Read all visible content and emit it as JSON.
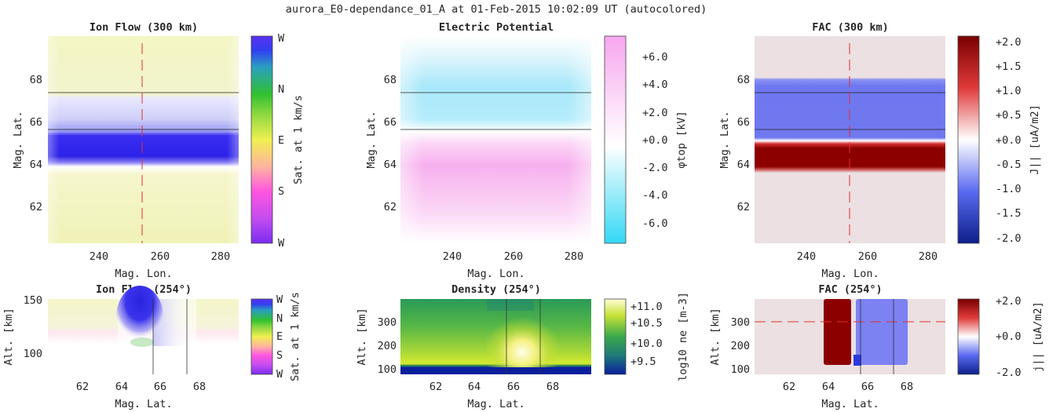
{
  "suptitle": "aurora_E0-dependance_01_A at 01-Feb-2015 10:02:09 UT (autocolored)",
  "colors": {
    "cyclic": [
      "#7b2cf0",
      "#ff55e0",
      "#ffb0a0",
      "#f0f050",
      "#30c030",
      "#3040f0",
      "#7b2cf0"
    ],
    "potential": [
      "#33d8f5",
      "#ffffff",
      "#f7a6ee"
    ],
    "fac": [
      "#0c1f8a",
      "#5a6af0",
      "#ffffff",
      "#e03a3a",
      "#7a0000"
    ],
    "density": [
      "#0a1f9c",
      "#1f8a5c",
      "#4cb848",
      "#d8ea30",
      "#ffffe0"
    ],
    "dashed_line": "#e03030",
    "axis_bg": "#ffffff"
  },
  "panels": {
    "ion_flow_top": {
      "title": "Ion Flow (300 km)",
      "xlabel": "Mag. Lon.",
      "ylabel": "Mag. Lat.",
      "xticks": [
        "240",
        "260",
        "280"
      ],
      "yticks": [
        "62",
        "64",
        "66",
        "68"
      ],
      "cbar_label": "Sat. at 1 km/s",
      "cbar_ticks": [
        "W",
        "N",
        "E",
        "S",
        "W"
      ]
    },
    "potential": {
      "title": "Electric Potential",
      "xlabel": "Mag. Lon.",
      "ylabel": "Mag. Lat.",
      "xticks": [
        "240",
        "260",
        "280"
      ],
      "yticks": [
        "62",
        "64",
        "66",
        "68"
      ],
      "cbar_label": "φtop [kV]",
      "cbar_ticks": [
        "+6.0",
        "+4.0",
        "+2.0",
        "+0.0",
        "-2.0",
        "-4.0",
        "-6.0"
      ]
    },
    "fac_top": {
      "title": "FAC (300 km)",
      "xlabel": "Mag. Lon.",
      "ylabel": "Mag. Lat.",
      "xticks": [
        "240",
        "260",
        "280"
      ],
      "yticks": [
        "62",
        "64",
        "66",
        "68"
      ],
      "cbar_label": "J|| [uA/m2]",
      "cbar_ticks": [
        "+2.0",
        "+1.5",
        "+1.0",
        "+0.5",
        "+0.0",
        "-0.5",
        "-1.0",
        "-1.5",
        "-2.0"
      ]
    },
    "ion_flow_alt": {
      "title": "Ion Flow (254°)",
      "xlabel": "Mag. Lat.",
      "ylabel": "Alt. [km]",
      "xticks": [
        "62",
        "64",
        "66",
        "68"
      ],
      "yticks": [
        "100",
        "150"
      ],
      "cbar_label": "Sat. at 1 km/s",
      "cbar_ticks": [
        "W",
        "N",
        "E",
        "S",
        "W"
      ]
    },
    "density": {
      "title": "Density (254°)",
      "xlabel": "Mag. Lat.",
      "ylabel": "Alt. [km]",
      "xticks": [
        "62",
        "64",
        "66",
        "68"
      ],
      "yticks": [
        "100",
        "200",
        "300"
      ],
      "cbar_label": "log10 ne [m-3]",
      "cbar_ticks": [
        "+11.0",
        "+10.5",
        "+10.0",
        "+9.5"
      ]
    },
    "fac_alt": {
      "title": "FAC (254°)",
      "xlabel": "Mag. Lat.",
      "ylabel": "Alt. [km]",
      "xticks": [
        "62",
        "64",
        "66",
        "68"
      ],
      "yticks": [
        "100",
        "200",
        "300"
      ],
      "cbar_label": "j|| [uA/m2]",
      "cbar_ticks": [
        "+2.0",
        "+0.0",
        "-2.0"
      ]
    }
  },
  "chart_data": [
    {
      "type": "heatmap",
      "title": "Ion Flow (300 km)",
      "xlabel": "Mag. Lon.",
      "ylabel": "Mag. Lat.",
      "xlim": [
        224,
        286
      ],
      "ylim": [
        60.2,
        70
      ],
      "arc_lat": [
        65.55,
        67.35
      ],
      "dashed_lon": 254,
      "bands": [
        {
          "lat_min": 60.2,
          "lat_max": 63.9,
          "dir": "E"
        },
        {
          "lat_min": 64.1,
          "lat_max": 65.6,
          "dir": "W",
          "strong": true
        },
        {
          "lat_min": 65.6,
          "lat_max": 67.4,
          "dir": "W",
          "weak": true
        },
        {
          "lat_min": 67.6,
          "lat_max": 70,
          "dir": "E"
        }
      ]
    },
    {
      "type": "heatmap",
      "title": "Electric Potential",
      "xlabel": "Mag. Lon.",
      "ylabel": "Mag. Lat.",
      "xlim": [
        224,
        286
      ],
      "ylim": [
        60.2,
        70
      ],
      "arc_lat": [
        65.55,
        67.35
      ],
      "clim": [
        -7,
        7.5
      ],
      "bands": [
        {
          "lat_min": 64.8,
          "lat_max": 70,
          "value": -5
        },
        {
          "lat_min": 60.2,
          "lat_max": 64.8,
          "value": 5
        }
      ]
    },
    {
      "type": "heatmap",
      "title": "FAC (300 km)",
      "xlabel": "Mag. Lon.",
      "ylabel": "Mag. Lat.",
      "xlim": [
        224,
        286
      ],
      "ylim": [
        60.2,
        70
      ],
      "arc_lat": [
        65.55,
        67.35
      ],
      "dashed_lon": 254,
      "clim": [
        -2.0,
        2.0
      ],
      "bands": [
        {
          "lat_min": 63.8,
          "lat_max": 65.1,
          "value": 2.0
        },
        {
          "lat_min": 65.2,
          "lat_max": 68.1,
          "value": -1.0
        },
        {
          "lat_min": 60.2,
          "lat_max": 70,
          "value": 0.1
        }
      ]
    },
    {
      "type": "heatmap",
      "title": "Ion Flow (254°)",
      "xlabel": "Mag. Lat.",
      "ylabel": "Alt. [km]",
      "xlim": [
        60.2,
        70
      ],
      "ylim": [
        80,
        150
      ],
      "arc_lat": [
        65.55,
        67.35
      ]
    },
    {
      "type": "heatmap",
      "title": "Density (254°)",
      "xlabel": "Mag. Lat.",
      "ylabel": "Alt. [km]",
      "xlim": [
        60.2,
        70
      ],
      "ylim": [
        80,
        400
      ],
      "arc_lat": [
        65.55,
        67.35
      ],
      "clim": [
        9.3,
        11.2
      ]
    },
    {
      "type": "heatmap",
      "title": "FAC (254°)",
      "xlabel": "Mag. Lat.",
      "ylabel": "Alt. [km]",
      "xlim": [
        60.2,
        70
      ],
      "ylim": [
        80,
        400
      ],
      "arc_lat": [
        65.55,
        67.35
      ],
      "dashed_alt": 300,
      "clim": [
        -2.0,
        2.0
      ],
      "bands": [
        {
          "lat_min": 63.8,
          "lat_max": 65.1,
          "value": 2.0
        },
        {
          "lat_min": 65.4,
          "lat_max": 68.0,
          "value": -1.0
        }
      ]
    }
  ]
}
